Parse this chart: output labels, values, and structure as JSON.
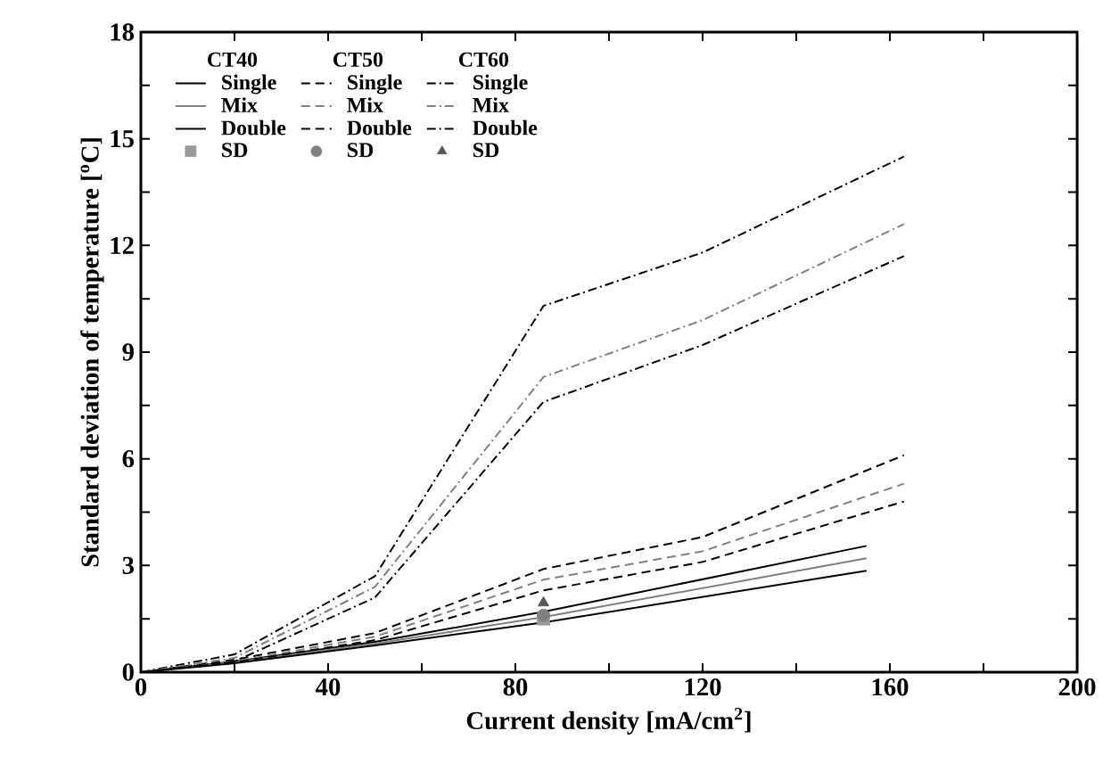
{
  "chart_data": {
    "type": "line",
    "xlabel": "Current density [mA/cm$^{2}$]",
    "ylabel": "Standard deviation of temperature [$^{o}$C]",
    "xlim": [
      0,
      200
    ],
    "ylim": [
      0,
      18
    ],
    "xticks": [
      0,
      {
        "value": 20,
        "label": null
      },
      40,
      {
        "value": 60,
        "label": null
      },
      80,
      {
        "value": 100,
        "label": null
      },
      120,
      {
        "value": 140,
        "label": null
      },
      160,
      {
        "value": 180,
        "label": null
      },
      200
    ],
    "yticks": [
      0,
      {
        "value": 1.5,
        "label": null
      },
      3,
      {
        "value": 4.5,
        "label": null
      },
      6,
      {
        "value": 7.5,
        "label": null
      },
      9,
      {
        "value": 10.5,
        "label": null
      },
      12,
      {
        "value": 13.5,
        "label": null
      },
      15,
      {
        "value": 16.5,
        "label": null
      },
      18
    ],
    "grid": false,
    "legend": "top left",
    "annotations": [
      "CT40",
      "CT50",
      "CT60"
    ],
    "series": [
      {
        "name": "Single",
        "color": "#000000",
        "line_style": "solid",
        "x": [
          0,
          20,
          50,
          86,
          155
        ],
        "values": [
          0,
          0.3,
          0.85,
          1.7,
          3.55
        ]
      },
      {
        "name": "Mix",
        "color": "#808080",
        "line_style": "solid",
        "x": [
          0,
          20,
          50,
          86,
          155
        ],
        "values": [
          0,
          0.28,
          0.8,
          1.55,
          3.2
        ]
      },
      {
        "name": "Double",
        "color": "#000000",
        "line_style": "solid",
        "x": [
          0,
          20,
          50,
          86,
          155
        ],
        "values": [
          0,
          0.25,
          0.75,
          1.4,
          2.85
        ]
      },
      {
        "name": "Single",
        "color": "#000000",
        "line_style": "dashed",
        "x": [
          0,
          20,
          50,
          86,
          120,
          163
        ],
        "values": [
          0,
          0.35,
          1.1,
          2.9,
          3.8,
          6.1
        ]
      },
      {
        "name": "Mix",
        "color": "#808080",
        "line_style": "dashed",
        "x": [
          0,
          20,
          50,
          86,
          120,
          163
        ],
        "values": [
          0,
          0.3,
          1.0,
          2.6,
          3.4,
          5.3
        ]
      },
      {
        "name": "Double",
        "color": "#000000",
        "line_style": "dashed",
        "x": [
          0,
          20,
          50,
          86,
          120,
          163
        ],
        "values": [
          0,
          0.28,
          0.9,
          2.3,
          3.1,
          4.8
        ]
      },
      {
        "name": "Single",
        "color": "#000000",
        "line_style": "dashdot",
        "x": [
          0,
          20,
          50,
          86,
          120,
          163
        ],
        "values": [
          0,
          0.5,
          2.7,
          10.3,
          11.8,
          14.5
        ]
      },
      {
        "name": "Mix",
        "color": "#808080",
        "line_style": "dashdot",
        "x": [
          0,
          20,
          50,
          86,
          120,
          163
        ],
        "values": [
          0,
          0.4,
          2.4,
          8.3,
          9.9,
          12.6
        ]
      },
      {
        "name": "Double",
        "color": "#000000",
        "line_style": "dashdot",
        "x": [
          0,
          20,
          50,
          86,
          120,
          163
        ],
        "values": [
          0,
          0.3,
          2.1,
          7.6,
          9.2,
          11.7
        ]
      },
      {
        "name": "SD",
        "type": "scatter",
        "marker": "square",
        "color": "#999999",
        "x": [
          86
        ],
        "values": [
          1.5
        ]
      },
      {
        "name": "SD",
        "type": "scatter",
        "marker": "circle",
        "color": "#808080",
        "x": [
          86
        ],
        "values": [
          1.6
        ]
      },
      {
        "name": "SD",
        "type": "scatter",
        "marker": "triangle",
        "color": "#555555",
        "x": [
          86
        ],
        "values": [
          1.95
        ]
      }
    ]
  }
}
